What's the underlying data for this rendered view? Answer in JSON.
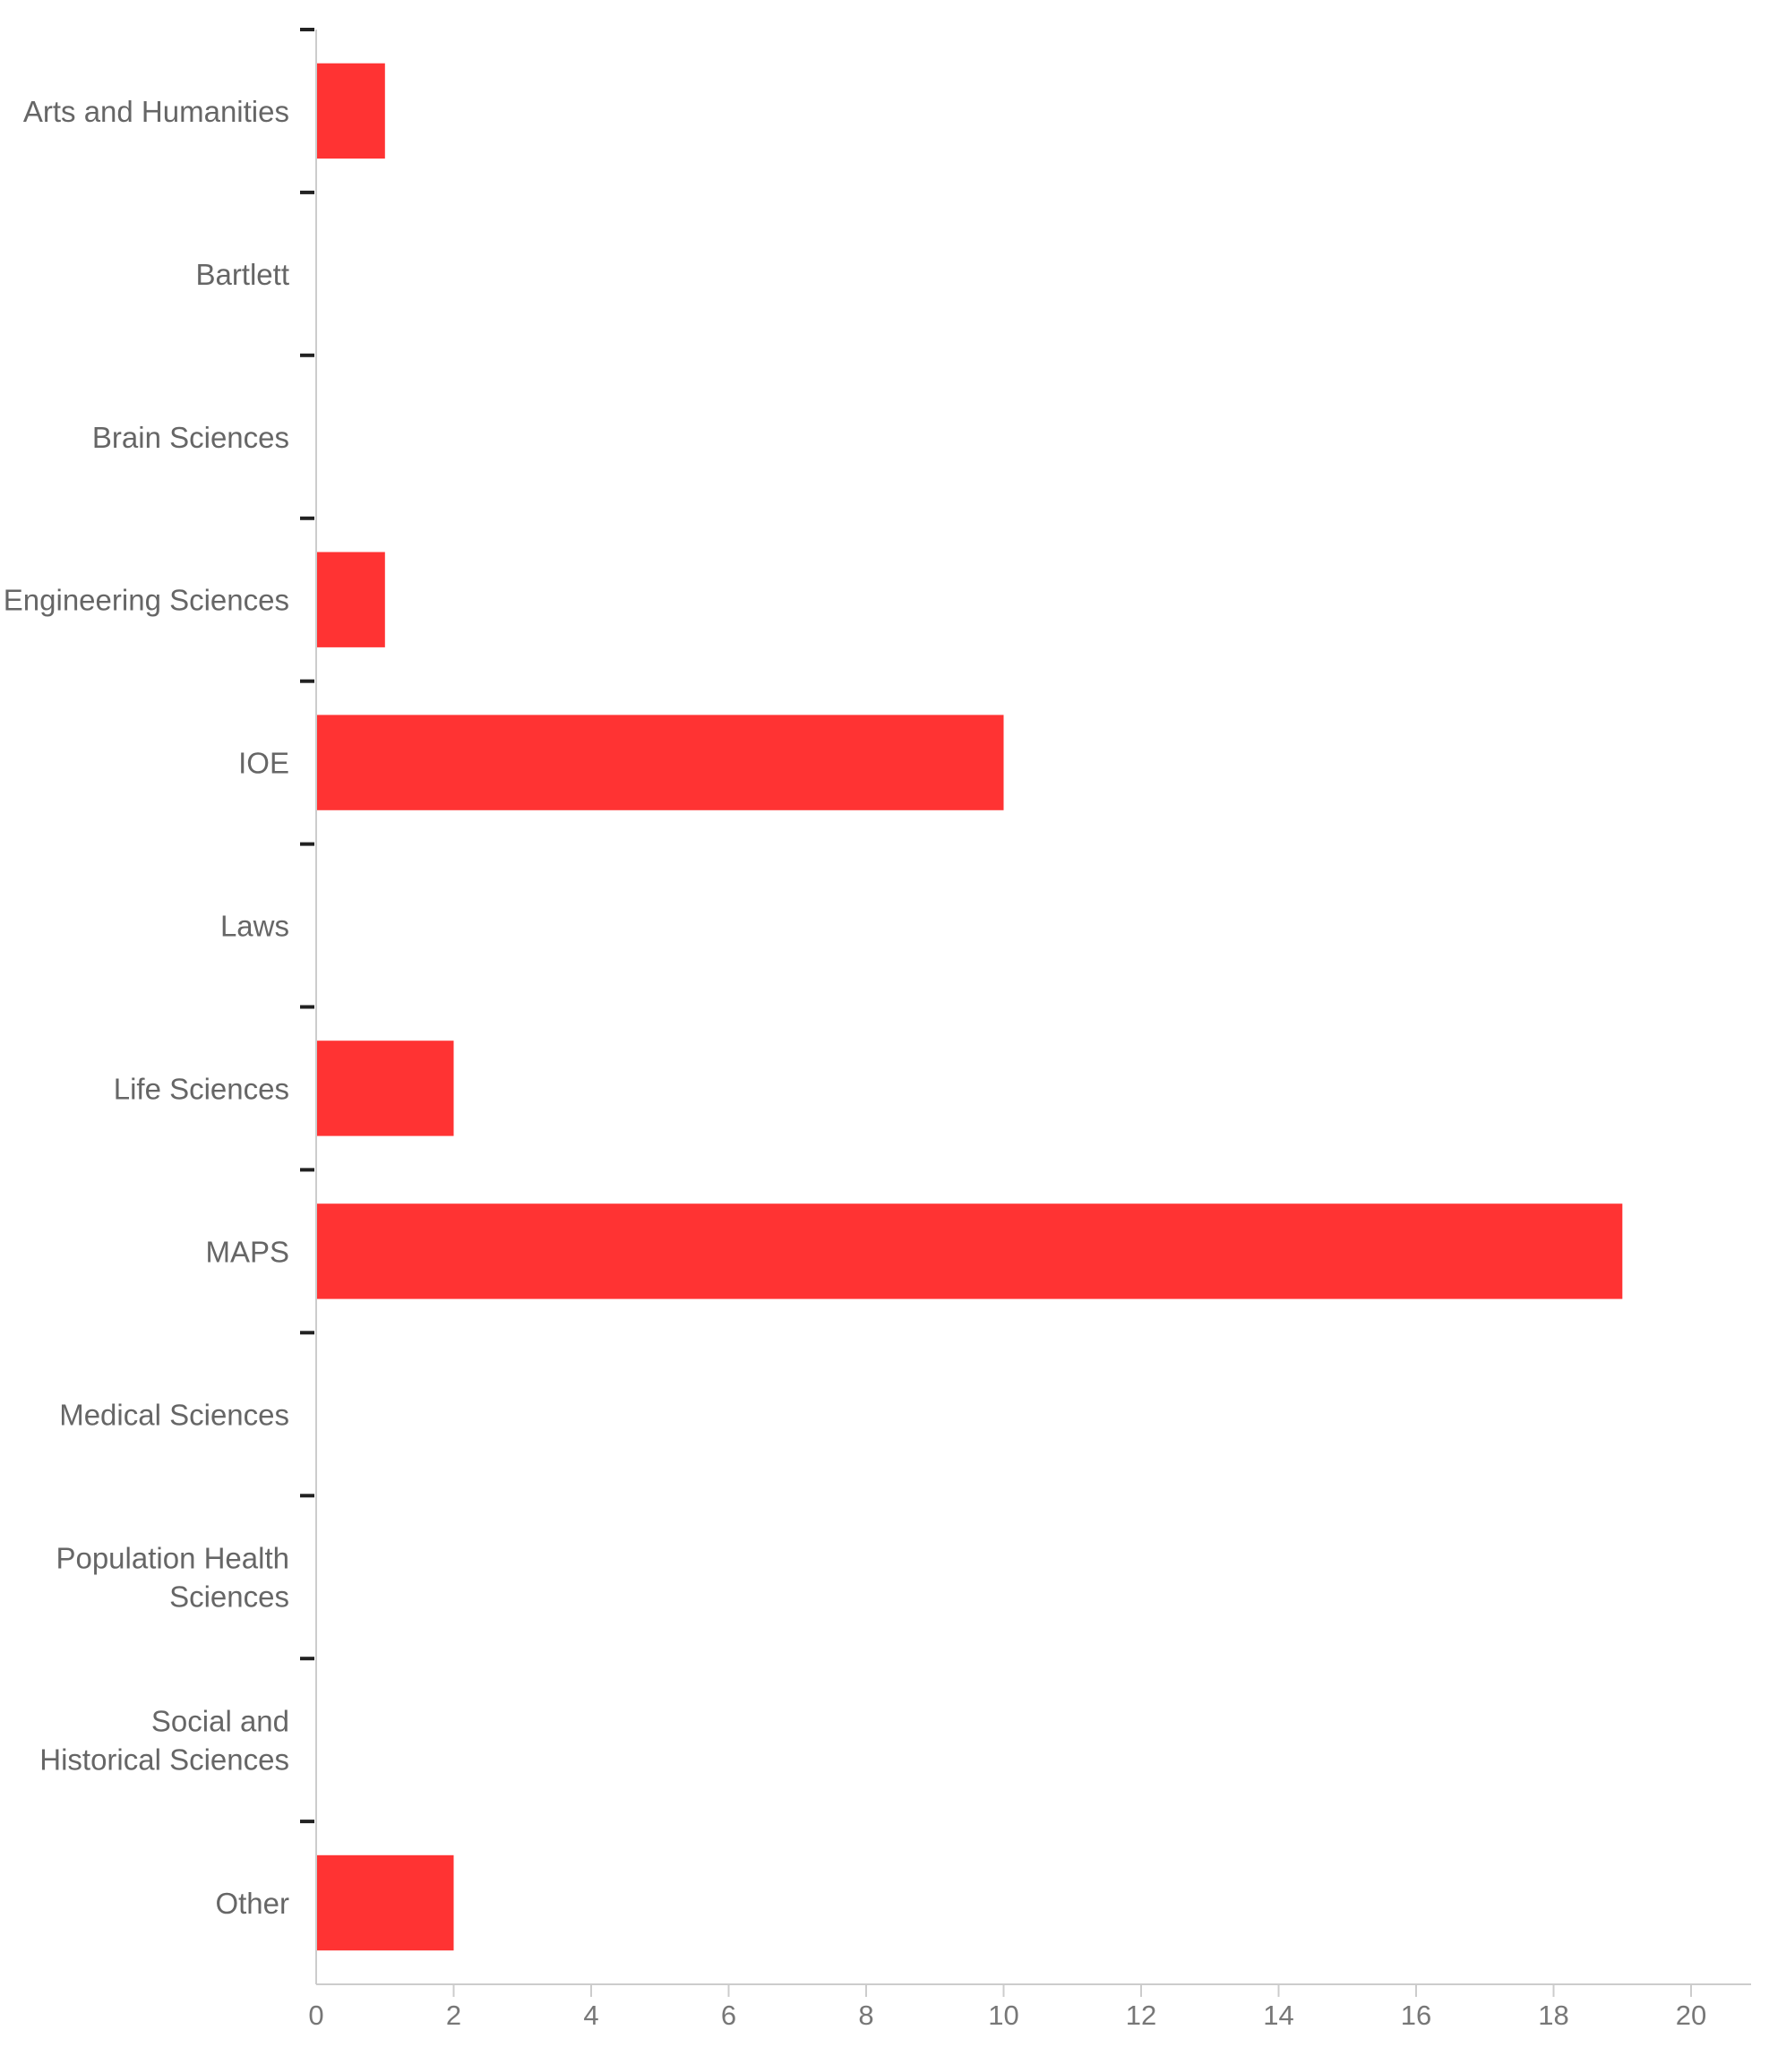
{
  "chart_data": {
    "type": "bar",
    "orientation": "horizontal",
    "categories": [
      "Arts and Humanities",
      "Bartlett",
      "Brain Sciences",
      "Engineering Sciences",
      "IOE",
      "Laws",
      "Life Sciences",
      "MAPS",
      "Medical Sciences",
      "Population Health Sciences",
      "Social and Historical Sciences",
      "Other"
    ],
    "category_label_lines": [
      [
        "Arts and Humanities"
      ],
      [
        "Bartlett"
      ],
      [
        "Brain Sciences"
      ],
      [
        "Engineering Sciences"
      ],
      [
        "IOE"
      ],
      [
        "Laws"
      ],
      [
        "Life Sciences"
      ],
      [
        "MAPS"
      ],
      [
        "Medical Sciences"
      ],
      [
        "Population Health",
        "Sciences"
      ],
      [
        "Social and",
        "Historical Sciences"
      ],
      [
        "Other"
      ]
    ],
    "values": [
      1,
      0,
      0,
      1,
      10,
      0,
      2,
      19,
      0,
      0,
      0,
      2
    ],
    "title": "",
    "xlabel": "",
    "ylabel": "",
    "xlim": [
      0,
      20.9
    ],
    "xticks": [
      0,
      2,
      4,
      6,
      8,
      10,
      12,
      14,
      16,
      18,
      20
    ],
    "grid": false,
    "legend": "none",
    "colors": {
      "bar": "#FF3333",
      "axis": "#cccccc",
      "tick_mark": "#222222",
      "label": "#666666"
    }
  }
}
